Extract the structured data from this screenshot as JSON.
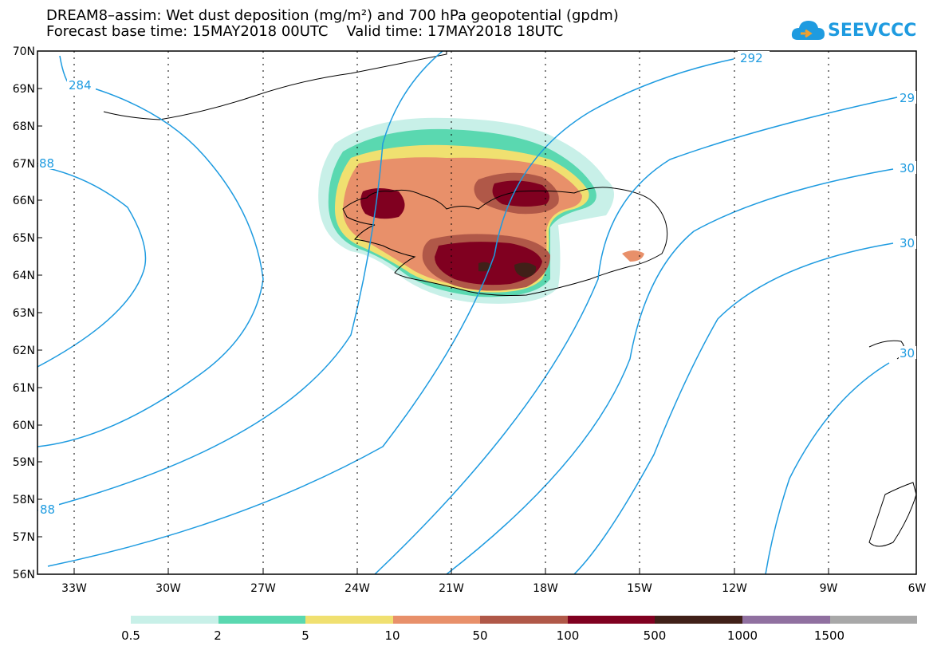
{
  "title": {
    "line1": "DREAM8–assim: Wet dust deposition (mg/m²) and 700 hPa geopotential (gpdm)",
    "line2": "Forecast base time: 15MAY2018 00UTC    Valid time: 17MAY2018 18UTC"
  },
  "logo": {
    "text": "SEEVCCC",
    "icon": "cloud-icon",
    "color": "#1e9be0"
  },
  "map": {
    "lat_labels": [
      "70N",
      "69N",
      "68N",
      "67N",
      "66N",
      "65N",
      "64N",
      "63N",
      "62N",
      "61N",
      "60N",
      "59N",
      "58N",
      "57N",
      "56N"
    ],
    "lon_labels": [
      "33W",
      "30W",
      "27W",
      "24W",
      "21W",
      "18W",
      "15W",
      "12W",
      "9W",
      "6W"
    ],
    "contour_labels": [
      "284",
      "292",
      "29",
      "30",
      "30",
      "30",
      "88",
      "88"
    ],
    "contour_color": "#1e9be0"
  },
  "legend": {
    "colors": [
      "#c8f0e8",
      "#5ad8b0",
      "#f0e070",
      "#e8906a",
      "#b05848",
      "#800020",
      "#402018",
      "#9070a0",
      "#a8a8a8"
    ],
    "labels": [
      "0.5",
      "2",
      "5",
      "10",
      "50",
      "100",
      "500",
      "1000",
      "1500"
    ]
  }
}
